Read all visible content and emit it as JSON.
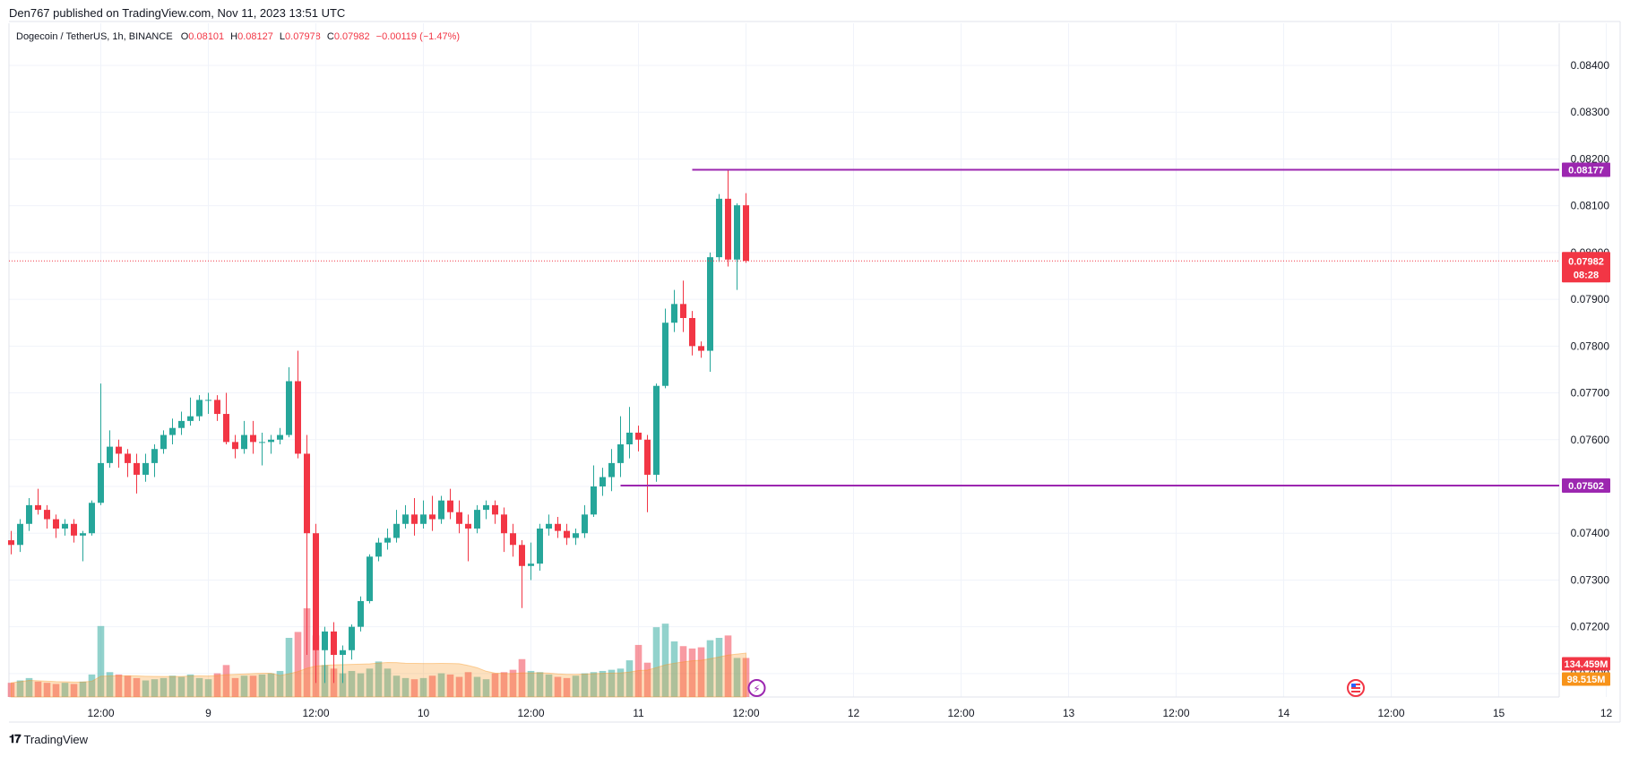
{
  "header": {
    "published_line": "Den767 published on TradingView.com, Nov 11, 2023 13:51 UTC"
  },
  "legend": {
    "symbol": "Dogecoin / TetherUS, 1h, BINANCE",
    "open_key": "O",
    "open": "0.08101",
    "high_key": "H",
    "high": "0.08127",
    "low_key": "L",
    "low": "0.07978",
    "close_key": "C",
    "close": "0.07982",
    "change": "−0.00119 (−1.47%)"
  },
  "footer": {
    "brand": "TradingView"
  },
  "colors": {
    "up": "#26a69a",
    "down": "#f23645",
    "level": "#9c27b0",
    "volume_ma": "#f7931a"
  },
  "chart_data": {
    "type": "candlestick",
    "y_axis": {
      "range": [
        0.0705,
        0.0849
      ],
      "ticks": [
        "0.07100",
        "0.07200",
        "0.07300",
        "0.07400",
        "0.07500",
        "0.07600",
        "0.07700",
        "0.07800",
        "0.07900",
        "0.08000",
        "0.08100",
        "0.08200",
        "0.08300",
        "0.08400"
      ]
    },
    "x_axis": {
      "ticks": [
        {
          "label": "12:00",
          "bar": 10
        },
        {
          "label": "9",
          "bar": 22
        },
        {
          "label": "12:00",
          "bar": 34
        },
        {
          "label": "10",
          "bar": 46
        },
        {
          "label": "12:00",
          "bar": 58
        },
        {
          "label": "11",
          "bar": 70
        },
        {
          "label": "12:00",
          "bar": 82
        },
        {
          "label": "12",
          "bar": 94
        },
        {
          "label": "12:00",
          "bar": 106
        },
        {
          "label": "13",
          "bar": 118
        },
        {
          "label": "12:00",
          "bar": 130
        },
        {
          "label": "14",
          "bar": 142
        },
        {
          "label": "12:00",
          "bar": 154
        },
        {
          "label": "15",
          "bar": 166
        },
        {
          "label": "12",
          "bar": 178
        }
      ]
    },
    "candles": [
      [
        0.07385,
        0.07375,
        0.07405,
        0.07355
      ],
      [
        0.07375,
        0.0742,
        0.0743,
        0.0736
      ],
      [
        0.0742,
        0.0746,
        0.07475,
        0.07405
      ],
      [
        0.0746,
        0.0745,
        0.07495,
        0.0744
      ],
      [
        0.0745,
        0.0743,
        0.0746,
        0.0741
      ],
      [
        0.0743,
        0.0741,
        0.0744,
        0.0739
      ],
      [
        0.0741,
        0.0742,
        0.0743,
        0.07395
      ],
      [
        0.0742,
        0.07395,
        0.0743,
        0.0738
      ],
      [
        0.07395,
        0.074,
        0.07405,
        0.0734
      ],
      [
        0.074,
        0.07465,
        0.0747,
        0.07395
      ],
      [
        0.07465,
        0.0755,
        0.0772,
        0.0746
      ],
      [
        0.0755,
        0.07585,
        0.0762,
        0.0754
      ],
      [
        0.07585,
        0.0757,
        0.076,
        0.0754
      ],
      [
        0.0757,
        0.0755,
        0.0758,
        0.0752
      ],
      [
        0.0755,
        0.07525,
        0.0757,
        0.07485
      ],
      [
        0.07525,
        0.0755,
        0.0757,
        0.0751
      ],
      [
        0.0755,
        0.0758,
        0.0759,
        0.0752
      ],
      [
        0.0758,
        0.0761,
        0.0762,
        0.0757
      ],
      [
        0.0761,
        0.07625,
        0.07645,
        0.0759
      ],
      [
        0.07625,
        0.0764,
        0.0766,
        0.0761
      ],
      [
        0.0764,
        0.0765,
        0.0769,
        0.0763
      ],
      [
        0.0765,
        0.07685,
        0.07695,
        0.0764
      ],
      [
        0.07685,
        0.07685,
        0.077,
        0.07655
      ],
      [
        0.07685,
        0.07655,
        0.07695,
        0.0764
      ],
      [
        0.07655,
        0.07595,
        0.077,
        0.0759
      ],
      [
        0.07595,
        0.0758,
        0.0761,
        0.0756
      ],
      [
        0.0758,
        0.0761,
        0.0764,
        0.0757
      ],
      [
        0.0761,
        0.07595,
        0.0764,
        0.0757
      ],
      [
        0.07595,
        0.07595,
        0.07615,
        0.07545
      ],
      [
        0.07595,
        0.076,
        0.0761,
        0.0757
      ],
      [
        0.076,
        0.0761,
        0.07625,
        0.0759
      ],
      [
        0.0761,
        0.07725,
        0.07755,
        0.07605
      ],
      [
        0.07725,
        0.0757,
        0.0779,
        0.0756
      ],
      [
        0.0757,
        0.074,
        0.0761,
        0.0714
      ],
      [
        0.074,
        0.0715,
        0.0742,
        0.0708
      ],
      [
        0.0715,
        0.0719,
        0.072,
        0.0708
      ],
      [
        0.0719,
        0.0714,
        0.0721,
        0.0708
      ],
      [
        0.0714,
        0.0715,
        0.0716,
        0.0708
      ],
      [
        0.0715,
        0.072,
        0.07205,
        0.0713
      ],
      [
        0.072,
        0.07255,
        0.07265,
        0.0719
      ],
      [
        0.07255,
        0.0735,
        0.07355,
        0.0725
      ],
      [
        0.0735,
        0.0738,
        0.0739,
        0.0734
      ],
      [
        0.0738,
        0.0739,
        0.0741,
        0.07365
      ],
      [
        0.0739,
        0.0742,
        0.0745,
        0.0738
      ],
      [
        0.0742,
        0.0744,
        0.0746,
        0.0741
      ],
      [
        0.0744,
        0.0742,
        0.07475,
        0.07395
      ],
      [
        0.0742,
        0.0744,
        0.0747,
        0.0741
      ],
      [
        0.0744,
        0.0743,
        0.0748,
        0.07405
      ],
      [
        0.0743,
        0.0747,
        0.0748,
        0.0742
      ],
      [
        0.0747,
        0.07445,
        0.07495,
        0.0743
      ],
      [
        0.07445,
        0.0742,
        0.0747,
        0.074
      ],
      [
        0.0742,
        0.0741,
        0.0744,
        0.0734
      ],
      [
        0.0741,
        0.0745,
        0.0746,
        0.074
      ],
      [
        0.0745,
        0.0746,
        0.0747,
        0.0743
      ],
      [
        0.0746,
        0.0744,
        0.0747,
        0.0742
      ],
      [
        0.0744,
        0.074,
        0.07455,
        0.0736
      ],
      [
        0.074,
        0.07375,
        0.0742,
        0.0735
      ],
      [
        0.07375,
        0.0733,
        0.07385,
        0.0724
      ],
      [
        0.0733,
        0.07335,
        0.0738,
        0.073
      ],
      [
        0.07335,
        0.0741,
        0.0742,
        0.0732
      ],
      [
        0.0741,
        0.0742,
        0.0744,
        0.07395
      ],
      [
        0.0742,
        0.07405,
        0.07435,
        0.0739
      ],
      [
        0.07405,
        0.0739,
        0.0742,
        0.07375
      ],
      [
        0.0739,
        0.074,
        0.0741,
        0.07375
      ],
      [
        0.074,
        0.0744,
        0.0746,
        0.0739
      ],
      [
        0.0744,
        0.075,
        0.07545,
        0.07435
      ],
      [
        0.075,
        0.0752,
        0.0754,
        0.0748
      ],
      [
        0.0752,
        0.0755,
        0.0758,
        0.0749
      ],
      [
        0.0755,
        0.0759,
        0.0765,
        0.0752
      ],
      [
        0.0759,
        0.07615,
        0.0767,
        0.0756
      ],
      [
        0.07615,
        0.076,
        0.0763,
        0.07575
      ],
      [
        0.076,
        0.07525,
        0.0761,
        0.07445
      ],
      [
        0.07525,
        0.07715,
        0.0772,
        0.0751
      ],
      [
        0.07715,
        0.0785,
        0.0788,
        0.0771
      ],
      [
        0.0785,
        0.0789,
        0.0792,
        0.0783
      ],
      [
        0.0789,
        0.0786,
        0.0794,
        0.0783
      ],
      [
        0.0786,
        0.078,
        0.07875,
        0.0778
      ],
      [
        0.078,
        0.0779,
        0.0781,
        0.07775
      ],
      [
        0.0779,
        0.0799,
        0.08,
        0.07745
      ],
      [
        0.0799,
        0.08115,
        0.08125,
        0.0798
      ],
      [
        0.08115,
        0.07985,
        0.08177,
        0.0797
      ],
      [
        0.07985,
        0.08101,
        0.08105,
        0.0792
      ],
      [
        0.08101,
        0.07982,
        0.08127,
        0.07978
      ]
    ],
    "volume": {
      "values": [
        12,
        14,
        16,
        13,
        12,
        11,
        12,
        11,
        13,
        19,
        60,
        21,
        19,
        18,
        16,
        14,
        15,
        16,
        18,
        17,
        19,
        16,
        15,
        20,
        27,
        16,
        18,
        18,
        19,
        20,
        22,
        50,
        55,
        75,
        52,
        27,
        24,
        20,
        22,
        20,
        24,
        30,
        24,
        18,
        16,
        15,
        16,
        18,
        20,
        19,
        17,
        21,
        17,
        15,
        20,
        21,
        23,
        32,
        22,
        21,
        19,
        17,
        16,
        18,
        20,
        21,
        22,
        23,
        24,
        31,
        44,
        29,
        59,
        62,
        47,
        43,
        41,
        42,
        48,
        50,
        52,
        33,
        33
      ],
      "last_label": "134.459M",
      "ma_label": "98.515M"
    },
    "levels": [
      {
        "label": "0.08177",
        "value": 0.08177,
        "from_bar": 76
      },
      {
        "label": "0.07502",
        "value": 0.07502,
        "from_bar": 68
      }
    ],
    "last_price": {
      "label": "0.07982",
      "value": 0.07982,
      "countdown": "08:28"
    }
  }
}
